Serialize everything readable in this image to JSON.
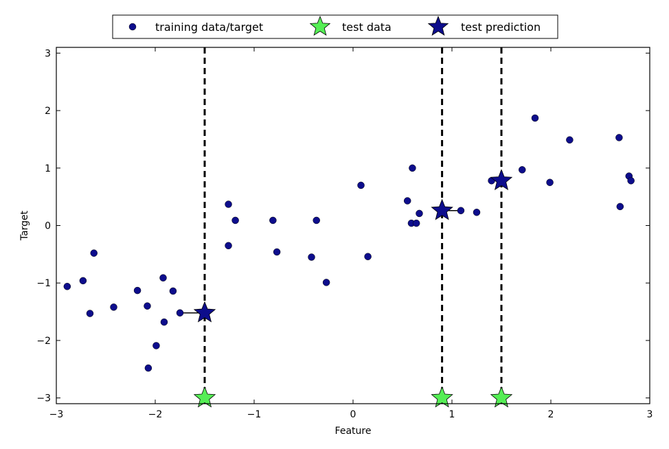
{
  "chart_data": {
    "type": "scatter",
    "xlabel": "Feature",
    "ylabel": "Target",
    "xlim": [
      -3,
      3
    ],
    "ylim": [
      -3.1,
      3.1
    ],
    "xticks": [
      -3,
      -2,
      -1,
      0,
      1,
      2,
      3
    ],
    "yticks": [
      -3,
      -2,
      -1,
      0,
      1,
      2,
      3
    ],
    "xtick_labels": [
      "−3",
      "−2",
      "−1",
      "0",
      "1",
      "2",
      "3"
    ],
    "ytick_labels": [
      "−3",
      "−2",
      "−1",
      "0",
      "1",
      "2",
      "3"
    ],
    "grid": false,
    "legend_position": "top-center",
    "series": [
      {
        "name": "training data/target",
        "marker": "circle",
        "color": "#0d0d8c",
        "points": [
          [
            -2.89,
            -1.06
          ],
          [
            -2.73,
            -0.96
          ],
          [
            -2.66,
            -1.53
          ],
          [
            -2.62,
            -0.48
          ],
          [
            -2.42,
            -1.42
          ],
          [
            -2.18,
            -1.13
          ],
          [
            -2.08,
            -1.4
          ],
          [
            -2.07,
            -2.48
          ],
          [
            -1.99,
            -2.09
          ],
          [
            -1.92,
            -0.91
          ],
          [
            -1.91,
            -1.68
          ],
          [
            -1.82,
            -1.14
          ],
          [
            -1.75,
            -1.52
          ],
          [
            -1.26,
            0.37
          ],
          [
            -1.26,
            -0.35
          ],
          [
            -1.19,
            0.09
          ],
          [
            -0.81,
            0.09
          ],
          [
            -0.77,
            -0.46
          ],
          [
            -0.42,
            -0.55
          ],
          [
            -0.37,
            0.09
          ],
          [
            -0.27,
            -0.99
          ],
          [
            0.08,
            0.7
          ],
          [
            0.15,
            -0.54
          ],
          [
            0.55,
            0.43
          ],
          [
            0.59,
            0.04
          ],
          [
            0.6,
            1.0
          ],
          [
            0.64,
            0.04
          ],
          [
            0.67,
            0.21
          ],
          [
            1.09,
            0.26
          ],
          [
            1.25,
            0.23
          ],
          [
            1.4,
            0.78
          ],
          [
            1.71,
            0.97
          ],
          [
            1.84,
            1.87
          ],
          [
            1.99,
            0.75
          ],
          [
            2.19,
            1.49
          ],
          [
            2.69,
            1.53
          ],
          [
            2.7,
            0.33
          ],
          [
            2.79,
            0.86
          ],
          [
            2.81,
            0.78
          ]
        ]
      },
      {
        "name": "test data",
        "marker": "star",
        "color": "#55ee55",
        "points": [
          [
            -1.5,
            -3.0
          ],
          [
            0.9,
            -3.0
          ],
          [
            1.5,
            -3.0
          ]
        ]
      },
      {
        "name": "test prediction",
        "marker": "star",
        "color": "#0d0d8c",
        "points": [
          [
            -1.5,
            -1.52
          ],
          [
            0.9,
            0.26
          ],
          [
            1.5,
            0.78
          ]
        ]
      }
    ],
    "vertical_dashed_lines": [
      -1.5,
      0.9,
      1.5
    ],
    "neighbor_connectors": [
      {
        "from": [
          -1.5,
          -1.52
        ],
        "to": [
          -1.75,
          -1.52
        ]
      },
      {
        "from": [
          0.9,
          0.26
        ],
        "to": [
          1.09,
          0.26
        ]
      },
      {
        "from": [
          1.5,
          0.78
        ],
        "to": [
          1.4,
          0.78
        ]
      }
    ]
  }
}
